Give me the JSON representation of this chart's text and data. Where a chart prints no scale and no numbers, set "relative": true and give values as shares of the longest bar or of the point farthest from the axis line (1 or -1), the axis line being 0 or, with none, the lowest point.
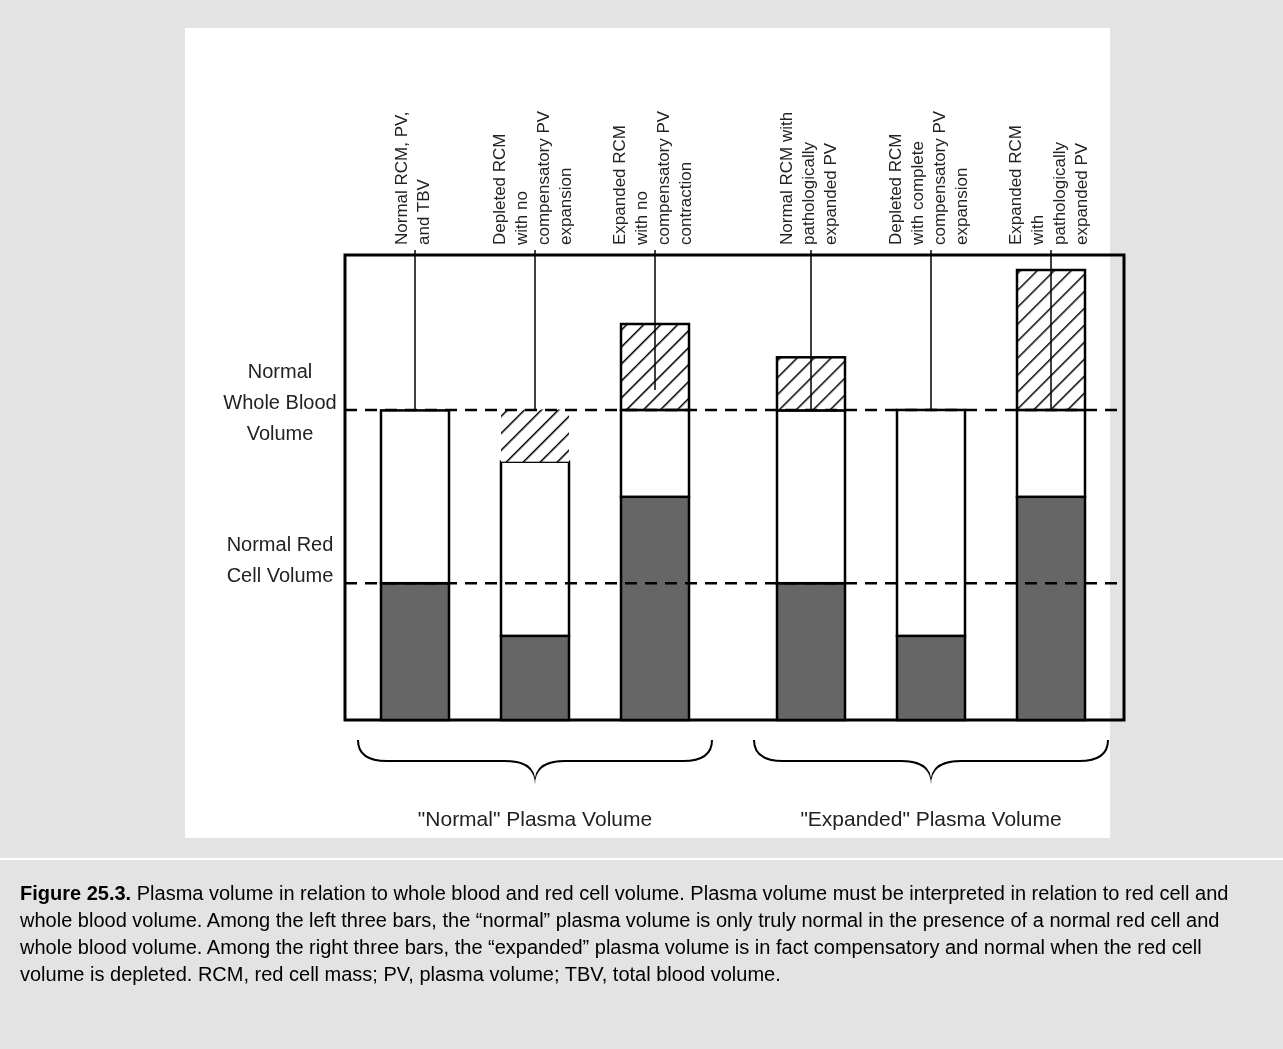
{
  "chart_data": {
    "type": "bar",
    "title": "Figure 25.3.",
    "stacked": true,
    "relative": true,
    "categories": [
      "Normal RCM, PV, and TBV",
      "Depleted RCM with no compensatory PV expansion",
      "Expanded RCM with no compensatory PV contraction",
      "Normal RCM with pathologically expanded PV",
      "Depleted RCM with complete compensatory PV expansion",
      "Expanded RCM with pathologically expanded PV"
    ],
    "series": [
      {
        "color": "#666666",
        "values": [
          0.304,
          0.187,
          0.496,
          0.304,
          0.187,
          0.496
        ]
      },
      {
        "color": "#ffffff",
        "values": [
          0.384,
          0.387,
          0.193,
          0.384,
          0.502,
          0.193
        ]
      },
      {
        "color": "#000000",
        "values": [
          0,
          0.116,
          0.191,
          0.118,
          0,
          0.311
        ]
      }
    ],
    "ref_lines": [
      {
        "axis": "y",
        "value": 0.689,
        "label": "Normal Whole Blood Volume",
        "line_style": "dashed"
      },
      {
        "axis": "y",
        "value": 0.304,
        "label": "Normal Red Cell Volume",
        "line_style": "dashed"
      }
    ],
    "annotations": [
      "\"Normal\" Plasma Volume",
      "\"Expanded\" Plasma Volume",
      "Plasma volume in relation to whole blood and red cell volume. Plasma volume must be interpreted in relation to red cell and whole blood volume. Among the left three bars, the “normal” plasma volume is only truly normal in the presence of a normal red cell and whole blood volume. Among the right three bars, the “expanded” plasma volume is in fact compensatory and normal when the red cell volume is depleted. RCM, red cell mass; PV, plasma volume; TBV, total blood volume."
    ]
  }
}
